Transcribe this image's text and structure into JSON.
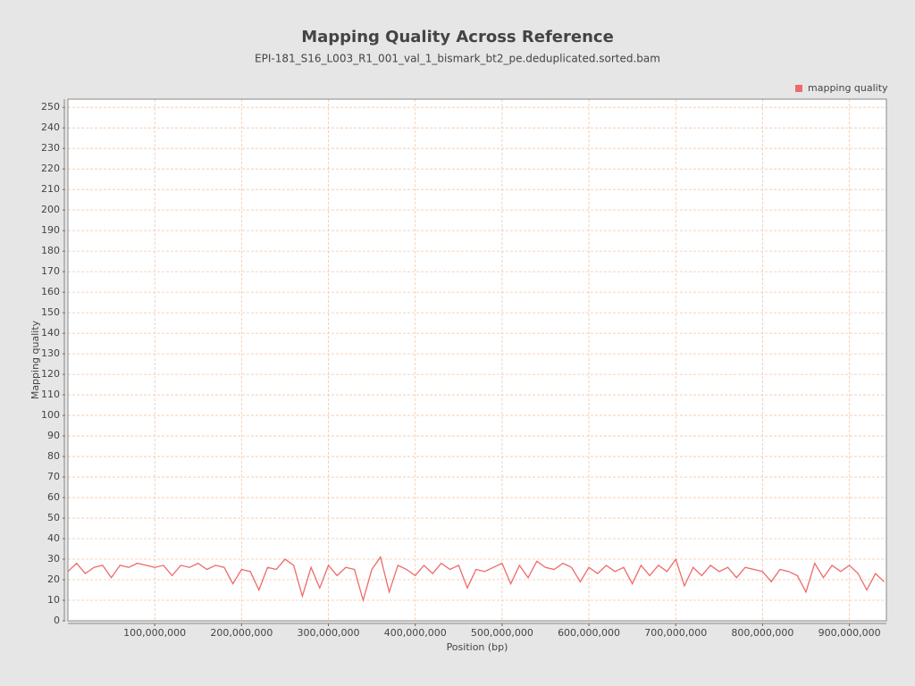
{
  "chart_data": {
    "type": "line",
    "title": "Mapping Quality Across Reference",
    "subtitle": "EPI-181_S16_L003_R1_001_val_1_bismark_bt2_pe.deduplicated.sorted.bam",
    "x_label": "Position (bp)",
    "y_label": "Mapping quality",
    "legend_position": "top-right",
    "grid": true,
    "xlim": [
      0,
      942600000
    ],
    "ylim": [
      0,
      254
    ],
    "xticks": [
      {
        "value": 100000000,
        "label": "100,000,000"
      },
      {
        "value": 200000000,
        "label": "200,000,000"
      },
      {
        "value": 300000000,
        "label": "300,000,000"
      },
      {
        "value": 400000000,
        "label": "400,000,000"
      },
      {
        "value": 500000000,
        "label": "500,000,000"
      },
      {
        "value": 600000000,
        "label": "600,000,000"
      },
      {
        "value": 700000000,
        "label": "700,000,000"
      },
      {
        "value": 800000000,
        "label": "800,000,000"
      },
      {
        "value": 900000000,
        "label": "900,000,000"
      }
    ],
    "yticks": [
      0,
      10,
      20,
      30,
      40,
      50,
      60,
      70,
      80,
      90,
      100,
      110,
      120,
      130,
      140,
      150,
      160,
      170,
      180,
      190,
      200,
      210,
      220,
      230,
      240,
      250
    ],
    "x": [
      0,
      10000000,
      20000000,
      30000000,
      40000000,
      50000000,
      60000000,
      70000000,
      80000000,
      90000000,
      100000000,
      110000000,
      120000000,
      130000000,
      140000000,
      150000000,
      160000000,
      170000000,
      180000000,
      190000000,
      200000000,
      210000000,
      220000000,
      230000000,
      240000000,
      250000000,
      260000000,
      270000000,
      280000000,
      290000000,
      300000000,
      310000000,
      320000000,
      330000000,
      340000000,
      350000000,
      360000000,
      370000000,
      380000000,
      390000000,
      400000000,
      410000000,
      420000000,
      430000000,
      440000000,
      450000000,
      460000000,
      470000000,
      480000000,
      490000000,
      500000000,
      510000000,
      520000000,
      530000000,
      540000000,
      550000000,
      560000000,
      570000000,
      580000000,
      590000000,
      600000000,
      610000000,
      620000000,
      630000000,
      640000000,
      650000000,
      660000000,
      670000000,
      680000000,
      690000000,
      700000000,
      710000000,
      720000000,
      730000000,
      740000000,
      750000000,
      760000000,
      770000000,
      780000000,
      790000000,
      800000000,
      810000000,
      820000000,
      830000000,
      840000000,
      850000000,
      860000000,
      870000000,
      880000000,
      890000000,
      900000000,
      910000000,
      920000000,
      930000000,
      940000000
    ],
    "series": [
      {
        "name": "mapping quality",
        "color": "#ee6a6a",
        "values": [
          24,
          28,
          23,
          26,
          27,
          21,
          27,
          26,
          28,
          27,
          26,
          27,
          22,
          27,
          26,
          28,
          25,
          27,
          26,
          18,
          25,
          24,
          15,
          26,
          25,
          30,
          27,
          12,
          26,
          16,
          27,
          22,
          26,
          25,
          10,
          25,
          31,
          14,
          27,
          25,
          22,
          27,
          23,
          28,
          25,
          27,
          16,
          25,
          24,
          26,
          28,
          18,
          27,
          21,
          29,
          26,
          25,
          28,
          26,
          19,
          26,
          23,
          27,
          24,
          26,
          18,
          27,
          22,
          27,
          24,
          30,
          17,
          26,
          22,
          27,
          24,
          26,
          21,
          26,
          25,
          24,
          19,
          25,
          24,
          22,
          14,
          28,
          21,
          27,
          24,
          27,
          23,
          15,
          23,
          19
        ]
      }
    ]
  }
}
